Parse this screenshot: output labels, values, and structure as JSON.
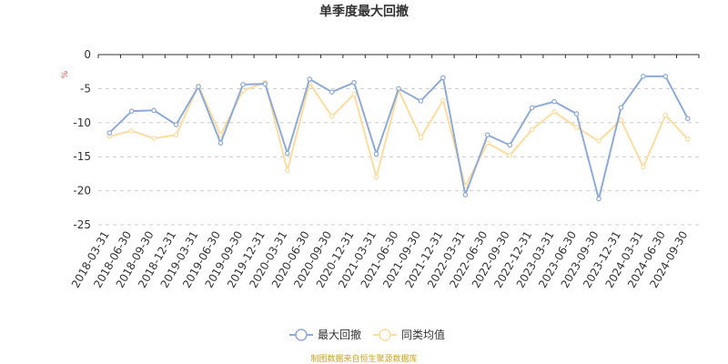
{
  "chart_data": {
    "type": "line",
    "title": "单季度最大回撤",
    "y_unit": "%",
    "ylim": [
      -25,
      0
    ],
    "yticks": [
      0,
      -5,
      -10,
      -15,
      -20,
      -25
    ],
    "grid": true,
    "legend_position": "bottom",
    "categories": [
      "2018-03-31",
      "2018-06-30",
      "2018-09-30",
      "2018-12-31",
      "2019-03-31",
      "2019-06-30",
      "2019-09-30",
      "2019-12-31",
      "2020-03-31",
      "2020-06-30",
      "2020-09-30",
      "2020-12-31",
      "2021-03-31",
      "2021-06-30",
      "2021-09-30",
      "2021-12-31",
      "2022-03-31",
      "2022-06-30",
      "2022-09-30",
      "2022-12-31",
      "2023-03-31",
      "2023-06-30",
      "2023-09-30",
      "2023-12-31",
      "2024-03-31",
      "2024-06-30",
      "2024-09-30"
    ],
    "series": [
      {
        "name": "最大回撤",
        "color": "#8eaad6",
        "values": [
          -11.5,
          -8.3,
          -8.2,
          -10.3,
          -4.7,
          -13.0,
          -4.4,
          -4.3,
          -14.5,
          -3.6,
          -5.5,
          -4.1,
          -14.6,
          -5.0,
          -6.8,
          -3.4,
          -20.6,
          -11.8,
          -13.3,
          -7.8,
          -6.9,
          -8.7,
          -21.2,
          -7.8,
          -3.2,
          -3.2,
          -9.4
        ]
      },
      {
        "name": "同类均值",
        "color": "#fddca0",
        "values": [
          -12.0,
          -11.2,
          -12.3,
          -11.8,
          -4.6,
          -11.8,
          -5.3,
          -4.1,
          -17.0,
          -4.2,
          -9.1,
          -5.8,
          -18.0,
          -5.2,
          -12.2,
          -6.7,
          -19.3,
          -13.0,
          -14.8,
          -11.0,
          -8.4,
          -10.7,
          -12.7,
          -9.6,
          -16.5,
          -8.9,
          -12.4
        ]
      }
    ]
  },
  "footer": {
    "source": "制图数据来自恒生聚源数据库"
  }
}
